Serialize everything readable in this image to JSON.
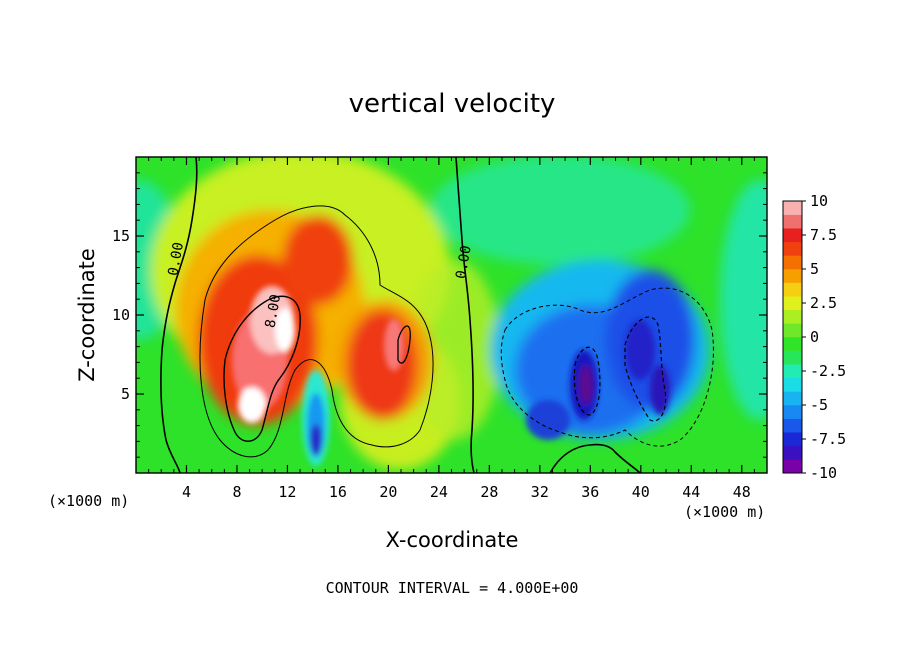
{
  "chart_data": {
    "type": "heatmap",
    "title": "vertical velocity",
    "xlabel": "X-coordinate",
    "ylabel": "Z-coordinate",
    "x_unit": "(×1000 m)",
    "z_unit": "(×1000 m)",
    "xlim": [
      0,
      50
    ],
    "ylim": [
      0,
      20
    ],
    "x_ticks": [
      4,
      8,
      12,
      16,
      20,
      24,
      28,
      32,
      36,
      40,
      44,
      48
    ],
    "y_ticks": [
      5,
      10,
      15
    ],
    "colorbar": {
      "range": [
        -10,
        10
      ],
      "ticks": [
        "10",
        "7.5",
        "5",
        "2.5",
        "0",
        "-2.5",
        "-5",
        "-7.5",
        "-10"
      ]
    },
    "contour_interval_note": "CONTOUR INTERVAL = 4.000E+00",
    "contour_labels": [
      {
        "text": "0.00",
        "x": 3.5,
        "z": 13.5
      },
      {
        "text": "0.00",
        "x": 26.3,
        "z": 13.3
      },
      {
        "text": "8.00",
        "x": 11.2,
        "z": 10.2
      }
    ],
    "features": [
      {
        "kind": "updraft",
        "x": 9.5,
        "z": 5.5,
        "peak": 11
      },
      {
        "kind": "updraft",
        "x": 11.5,
        "z": 9,
        "peak": 9
      },
      {
        "kind": "updraft",
        "x": 19.5,
        "z": 6.5,
        "peak": 8.5
      },
      {
        "kind": "downdraft",
        "x": 14.5,
        "z": 2.5,
        "peak": -8
      },
      {
        "kind": "downdraft",
        "x": 35.5,
        "z": 5.5,
        "peak": -10
      },
      {
        "kind": "downdraft",
        "x": 40.5,
        "z": 7,
        "peak": -9
      }
    ],
    "grid": false,
    "legend": "colorbar-right"
  }
}
